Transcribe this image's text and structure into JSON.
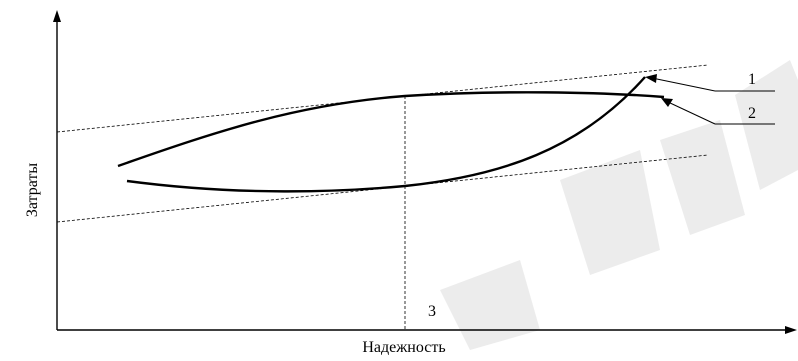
{
  "diagram": {
    "x_axis_label": "Надежность",
    "y_axis_label": "Затраты",
    "optimum_marker": "3",
    "curve_labels": [
      {
        "id": "1"
      },
      {
        "id": "2"
      }
    ],
    "colors": {
      "ink": "#000000",
      "watermark": "#d9d9d9"
    }
  }
}
